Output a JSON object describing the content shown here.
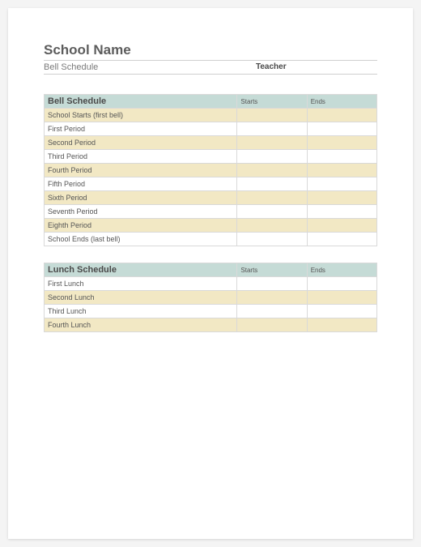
{
  "colors": {
    "page_bg": "#ffffff",
    "body_bg": "#f4f4f4",
    "title_color": "#5c5c5c",
    "subhead_color": "#7a7a7a",
    "header_bg": "#c5dbd6",
    "row_alt_bg": "#f2e8c4",
    "row_bg": "#ffffff",
    "border": "#d9d9d9",
    "text": "#555"
  },
  "typography": {
    "title_fontsize_pt": 17,
    "subhead_fontsize_pt": 11,
    "section_header_fontsize_pt": 11,
    "col_header_fontsize_pt": 8,
    "cell_fontsize_pt": 9,
    "font_family": "Arial"
  },
  "header": {
    "title": "School Name",
    "subtitle": "Bell Schedule",
    "teacher_label": "Teacher"
  },
  "tables": [
    {
      "section_title": "Bell Schedule",
      "columns": [
        "Starts",
        "Ends"
      ],
      "column_widths_pct": [
        58,
        21,
        21
      ],
      "alt_start": 0,
      "rows": [
        {
          "label": "School Starts (first bell)",
          "starts": "",
          "ends": ""
        },
        {
          "label": "First Period",
          "starts": "",
          "ends": ""
        },
        {
          "label": "Second Period",
          "starts": "",
          "ends": ""
        },
        {
          "label": "Third Period",
          "starts": "",
          "ends": ""
        },
        {
          "label": "Fourth Period",
          "starts": "",
          "ends": ""
        },
        {
          "label": "Fifth Period",
          "starts": "",
          "ends": ""
        },
        {
          "label": "Sixth Period",
          "starts": "",
          "ends": ""
        },
        {
          "label": "Seventh Period",
          "starts": "",
          "ends": ""
        },
        {
          "label": "Eighth Period",
          "starts": "",
          "ends": ""
        },
        {
          "label": "School Ends (last bell)",
          "starts": "",
          "ends": ""
        }
      ]
    },
    {
      "section_title": "Lunch Schedule",
      "columns": [
        "Starts",
        "Ends"
      ],
      "column_widths_pct": [
        58,
        21,
        21
      ],
      "alt_start": 1,
      "rows": [
        {
          "label": "First Lunch",
          "starts": "",
          "ends": ""
        },
        {
          "label": "Second Lunch",
          "starts": "",
          "ends": ""
        },
        {
          "label": "Third Lunch",
          "starts": "",
          "ends": ""
        },
        {
          "label": "Fourth Lunch",
          "starts": "",
          "ends": ""
        }
      ]
    }
  ]
}
